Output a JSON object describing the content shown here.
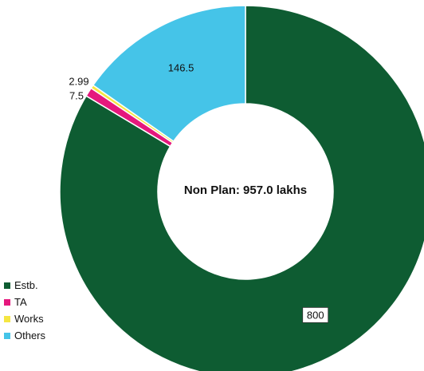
{
  "chart_data": {
    "type": "pie",
    "donut": true,
    "center_text": "Non Plan: 957.0 lakhs",
    "slices": [
      {
        "label": "Estb.",
        "value": 800,
        "value_text": "800",
        "color": "#0e5c32"
      },
      {
        "label": "TA",
        "value": 7.5,
        "value_text": "7.5",
        "color": "#e5187d"
      },
      {
        "label": "Works",
        "value": 2.99,
        "value_text": "2.99",
        "color": "#f5e642"
      },
      {
        "label": "Others",
        "value": 146.5,
        "value_text": "146.5",
        "color": "#45c4e8"
      }
    ],
    "legend_position": "bottom-left"
  }
}
